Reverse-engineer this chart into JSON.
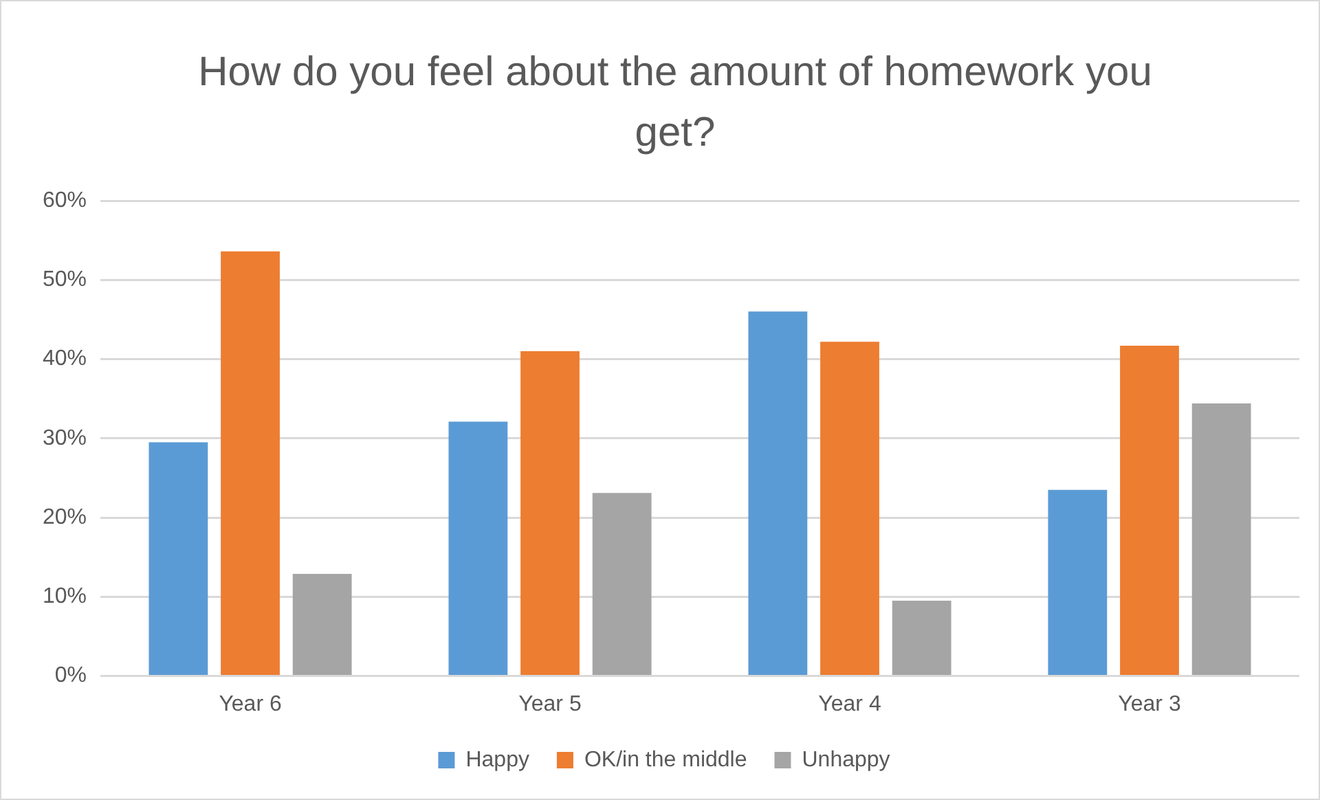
{
  "chart_data": {
    "type": "bar",
    "title": "How do you feel about the amount of homework you get?",
    "categories": [
      "Year 6",
      "Year 5",
      "Year 4",
      "Year 3"
    ],
    "series": [
      {
        "name": "Happy",
        "color": "#5b9bd5",
        "values": [
          29.5,
          32.1,
          46.0,
          23.5
        ]
      },
      {
        "name": "OK/in the middle",
        "color": "#ed7d31",
        "values": [
          53.6,
          41.0,
          42.2,
          41.7
        ]
      },
      {
        "name": "Unhappy",
        "color": "#a5a5a5",
        "values": [
          12.9,
          23.1,
          9.5,
          34.4
        ]
      }
    ],
    "ylim": [
      0,
      60
    ],
    "yticks": [
      {
        "value": 0,
        "label": "0%"
      },
      {
        "value": 10,
        "label": "10%"
      },
      {
        "value": 20,
        "label": "20%"
      },
      {
        "value": 30,
        "label": "30%"
      },
      {
        "value": 40,
        "label": "40%"
      },
      {
        "value": 50,
        "label": "50%"
      },
      {
        "value": 60,
        "label": "60%"
      }
    ],
    "grid": "y",
    "legend": "bottom"
  }
}
